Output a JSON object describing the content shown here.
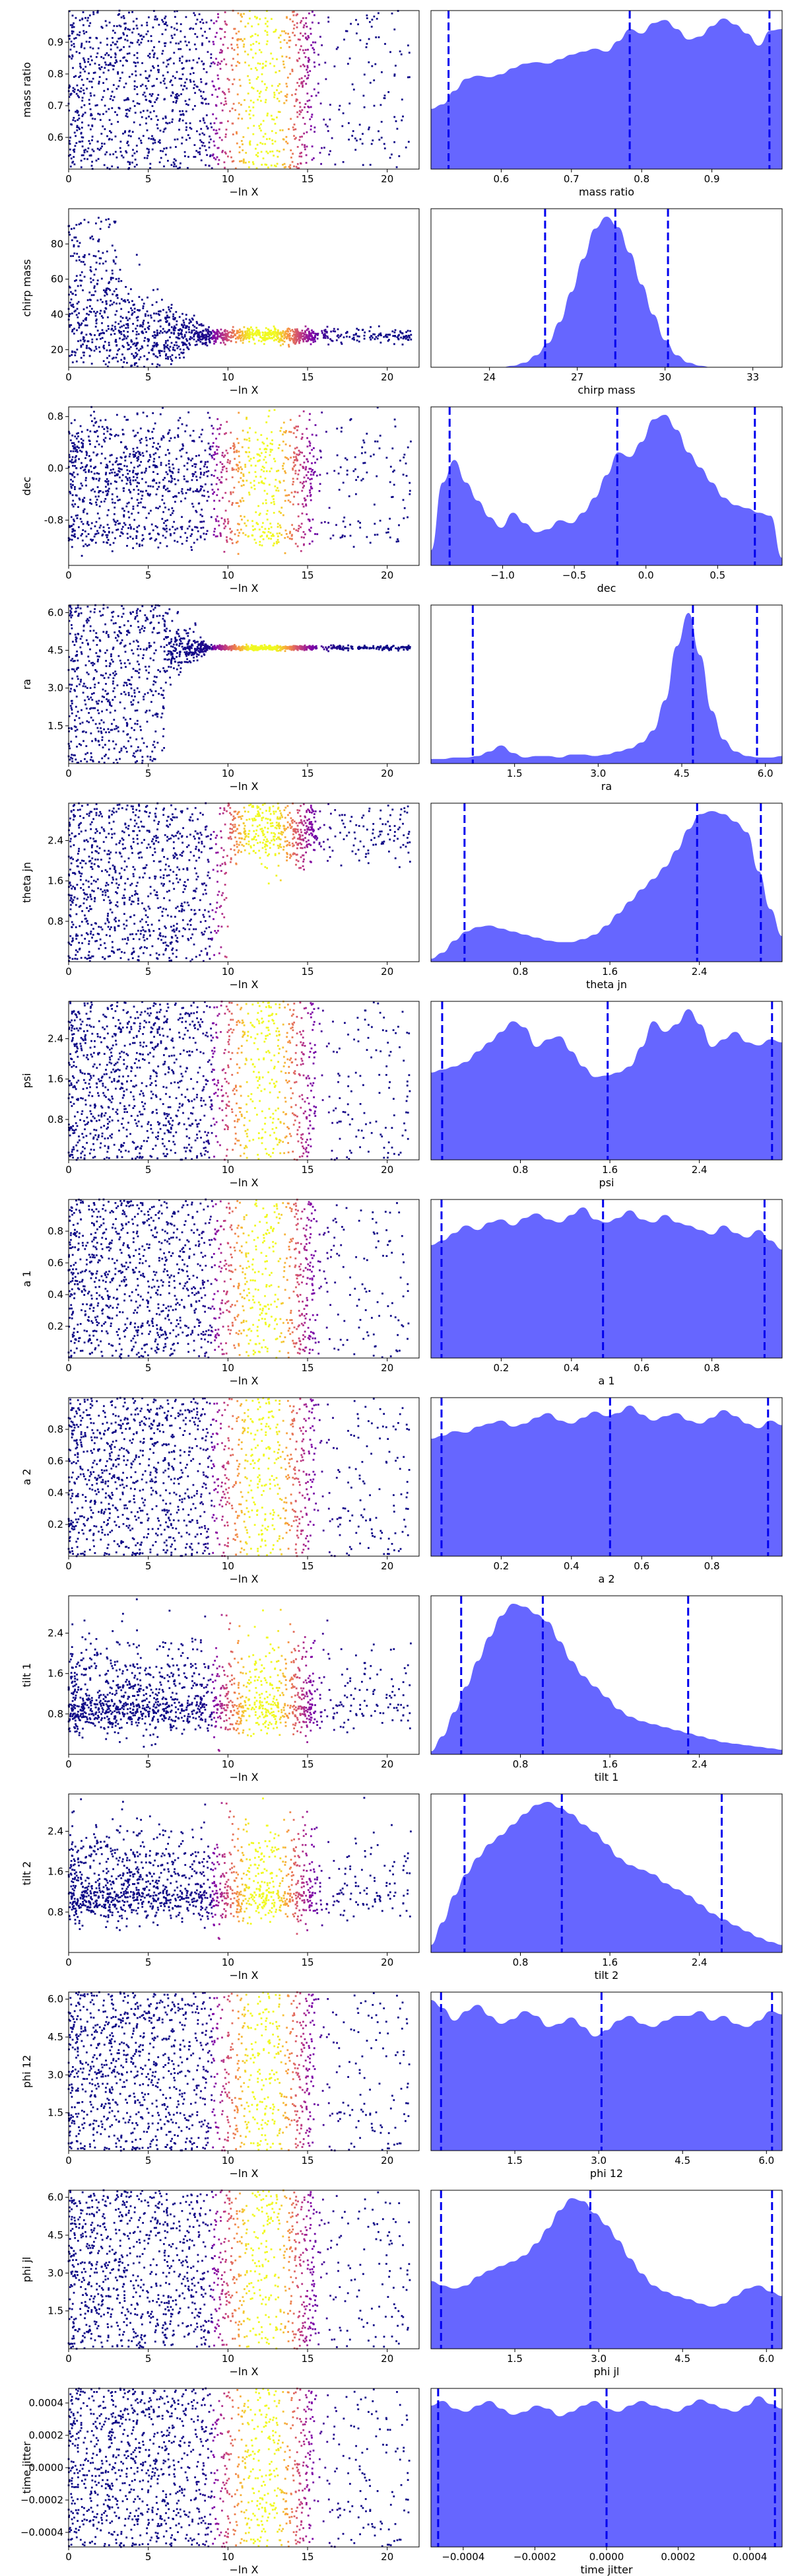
{
  "figure": {
    "panel_rows": 13,
    "colormap": "plasma"
  },
  "scatter_xlabel": "−ln X",
  "scatter_xticks": [
    "0",
    "5",
    "10",
    "15",
    "20"
  ],
  "scatter_xlim": [
    0,
    22
  ],
  "kde_fill_color": "#6666ff",
  "quantile_line_color": "#0000ee",
  "chart_data": [
    {
      "type": "scatter+area",
      "name": "mass ratio",
      "ylabel": "mass ratio",
      "xlabel": "mass ratio",
      "range": [
        0.5,
        1.0
      ],
      "scatter_yticks": [
        "0.6",
        "0.7",
        "0.8",
        "0.9"
      ],
      "kde_xticks": [
        "0.6",
        "0.7",
        "0.8",
        "0.9"
      ],
      "scatter_profile": "uniform",
      "quantiles": [
        0.525,
        0.783,
        0.982
      ],
      "kde": [
        0.4,
        0.43,
        0.52,
        0.6,
        0.62,
        0.61,
        0.63,
        0.67,
        0.7,
        0.71,
        0.7,
        0.73,
        0.76,
        0.78,
        0.8,
        0.78,
        0.85,
        0.93,
        0.9,
        0.97,
        0.99,
        0.93,
        0.86,
        0.88,
        0.95,
        1.0,
        0.96,
        0.9,
        0.82,
        0.92,
        0.93
      ]
    },
    {
      "type": "scatter+area",
      "name": "chirp mass",
      "ylabel": "chirp mass",
      "xlabel": "chirp mass",
      "range": [
        22,
        34
      ],
      "scatter_ylim": [
        10,
        100
      ],
      "scatter_yticks": [
        "20",
        "40",
        "60",
        "80"
      ],
      "kde_xticks": [
        "24",
        "27",
        "30",
        "33"
      ],
      "scatter_profile": "converge",
      "center": 28.0,
      "quantiles": [
        25.9,
        28.3,
        30.1
      ],
      "kde": [
        0.0,
        0.0,
        0.0,
        0.0,
        0.0,
        0.0,
        0.0,
        0.01,
        0.03,
        0.08,
        0.16,
        0.3,
        0.5,
        0.72,
        0.92,
        1.0,
        0.93,
        0.76,
        0.55,
        0.35,
        0.18,
        0.08,
        0.03,
        0.01,
        0.0,
        0.0,
        0.0,
        0.0,
        0.0,
        0.0,
        0.0
      ]
    },
    {
      "type": "scatter+area",
      "name": "dec",
      "ylabel": "dec",
      "xlabel": "dec",
      "range": [
        -1.5,
        0.95
      ],
      "scatter_yticks": [
        "-0.8",
        "0.0",
        "0.8"
      ],
      "kde_xticks": [
        "−1.0",
        "−0.5",
        "0.0",
        "0.5"
      ],
      "scatter_profile": "bimodal",
      "center": 0.0,
      "quantiles": [
        -1.37,
        -0.2,
        0.76
      ],
      "kde": [
        0.1,
        0.55,
        0.7,
        0.55,
        0.43,
        0.32,
        0.25,
        0.35,
        0.28,
        0.22,
        0.24,
        0.3,
        0.28,
        0.35,
        0.45,
        0.6,
        0.75,
        0.72,
        0.82,
        0.97,
        1.0,
        0.9,
        0.75,
        0.65,
        0.55,
        0.45,
        0.4,
        0.38,
        0.35,
        0.33,
        0.05
      ]
    },
    {
      "type": "scatter+area",
      "name": "ra",
      "ylabel": "ra",
      "xlabel": "ra",
      "range": [
        0.0,
        6.3
      ],
      "scatter_yticks": [
        "1.5",
        "3.0",
        "4.5",
        "6.0"
      ],
      "kde_xticks": [
        "1.5",
        "3.0",
        "4.5",
        "6.0"
      ],
      "scatter_profile": "converge",
      "center": 4.6,
      "quantiles": [
        0.75,
        4.7,
        5.85
      ],
      "kde": [
        0.03,
        0.03,
        0.04,
        0.04,
        0.05,
        0.08,
        0.12,
        0.07,
        0.04,
        0.05,
        0.05,
        0.04,
        0.06,
        0.06,
        0.05,
        0.06,
        0.08,
        0.1,
        0.14,
        0.22,
        0.42,
        0.78,
        1.0,
        0.72,
        0.35,
        0.16,
        0.08,
        0.05,
        0.04,
        0.04,
        0.05
      ]
    },
    {
      "type": "scatter+area",
      "name": "theta jn",
      "ylabel": "theta jn",
      "xlabel": "theta jn",
      "range": [
        0.0,
        3.14
      ],
      "scatter_yticks": [
        "0.8",
        "1.6",
        "2.4"
      ],
      "kde_xticks": [
        "0.8",
        "1.6",
        "2.4"
      ],
      "scatter_profile": "shift",
      "center": 2.6,
      "quantiles": [
        0.3,
        2.38,
        2.95
      ],
      "kde": [
        0.02,
        0.06,
        0.14,
        0.2,
        0.23,
        0.24,
        0.22,
        0.2,
        0.18,
        0.16,
        0.14,
        0.13,
        0.13,
        0.15,
        0.18,
        0.24,
        0.32,
        0.4,
        0.48,
        0.55,
        0.63,
        0.74,
        0.88,
        0.98,
        1.0,
        0.98,
        0.93,
        0.86,
        0.6,
        0.35,
        0.17
      ]
    },
    {
      "type": "scatter+area",
      "name": "psi",
      "ylabel": "psi",
      "xlabel": "psi",
      "range": [
        0.0,
        3.14
      ],
      "scatter_yticks": [
        "0.8",
        "1.6",
        "2.4"
      ],
      "kde_xticks": [
        "0.8",
        "1.6",
        "2.4"
      ],
      "scatter_profile": "uniform",
      "quantiles": [
        0.1,
        1.58,
        3.05
      ],
      "kde": [
        0.58,
        0.6,
        0.62,
        0.65,
        0.72,
        0.78,
        0.85,
        0.92,
        0.88,
        0.75,
        0.8,
        0.82,
        0.72,
        0.62,
        0.55,
        0.56,
        0.58,
        0.62,
        0.75,
        0.92,
        0.85,
        0.9,
        1.0,
        0.9,
        0.75,
        0.8,
        0.85,
        0.78,
        0.76,
        0.8,
        0.78
      ]
    },
    {
      "type": "scatter+area",
      "name": "a 1",
      "ylabel": "a 1",
      "xlabel": "a 1",
      "range": [
        0.0,
        1.0
      ],
      "scatter_yticks": [
        "0.2",
        "0.4",
        "0.6",
        "0.8"
      ],
      "kde_xticks": [
        "0.2",
        "0.4",
        "0.6",
        "0.8"
      ],
      "scatter_profile": "uniform",
      "quantiles": [
        0.03,
        0.49,
        0.95
      ],
      "kde": [
        0.75,
        0.78,
        0.83,
        0.88,
        0.85,
        0.9,
        0.92,
        0.88,
        0.93,
        0.96,
        0.92,
        0.9,
        0.95,
        1.0,
        0.92,
        0.9,
        0.93,
        0.98,
        0.92,
        0.9,
        0.95,
        0.9,
        0.88,
        0.85,
        0.82,
        0.88,
        0.83,
        0.8,
        0.85,
        0.78,
        0.72
      ]
    },
    {
      "type": "scatter+area",
      "name": "a 2",
      "ylabel": "a 2",
      "xlabel": "a 2",
      "range": [
        0.0,
        1.0
      ],
      "scatter_yticks": [
        "0.2",
        "0.4",
        "0.6",
        "0.8"
      ],
      "kde_xticks": [
        "0.2",
        "0.4",
        "0.6",
        "0.8"
      ],
      "scatter_profile": "uniform",
      "quantiles": [
        0.03,
        0.51,
        0.96
      ],
      "kde": [
        0.78,
        0.8,
        0.83,
        0.82,
        0.86,
        0.88,
        0.9,
        0.86,
        0.88,
        0.92,
        0.95,
        0.9,
        0.88,
        0.92,
        0.96,
        0.93,
        0.95,
        1.0,
        0.94,
        0.9,
        0.93,
        0.95,
        0.9,
        0.88,
        0.92,
        0.97,
        0.93,
        0.88,
        0.85,
        0.9,
        0.87
      ]
    },
    {
      "type": "scatter+area",
      "name": "tilt 1",
      "ylabel": "tilt 1",
      "xlabel": "tilt 1",
      "range": [
        0.0,
        3.14
      ],
      "scatter_yticks": [
        "0.8",
        "1.6",
        "2.4"
      ],
      "kde_xticks": [
        "0.8",
        "1.6",
        "2.4"
      ],
      "scatter_profile": "skew",
      "center": 1.0,
      "quantiles": [
        0.27,
        1.0,
        2.3
      ],
      "kde": [
        0.02,
        0.12,
        0.28,
        0.45,
        0.62,
        0.78,
        0.92,
        1.0,
        0.98,
        0.93,
        0.88,
        0.75,
        0.62,
        0.52,
        0.45,
        0.38,
        0.3,
        0.25,
        0.22,
        0.2,
        0.18,
        0.16,
        0.14,
        0.12,
        0.1,
        0.08,
        0.07,
        0.06,
        0.05,
        0.04,
        0.03
      ]
    },
    {
      "type": "scatter+area",
      "name": "tilt 2",
      "ylabel": "tilt 2",
      "xlabel": "tilt 2",
      "range": [
        0.0,
        3.14
      ],
      "scatter_yticks": [
        "0.8",
        "1.6",
        "2.4"
      ],
      "kde_xticks": [
        "0.8",
        "1.6",
        "2.4"
      ],
      "scatter_profile": "skew",
      "center": 1.2,
      "quantiles": [
        0.3,
        1.17,
        2.6
      ],
      "kde": [
        0.05,
        0.2,
        0.38,
        0.52,
        0.63,
        0.72,
        0.78,
        0.85,
        0.92,
        0.98,
        1.0,
        0.96,
        0.92,
        0.85,
        0.8,
        0.72,
        0.63,
        0.58,
        0.55,
        0.52,
        0.46,
        0.42,
        0.38,
        0.32,
        0.26,
        0.22,
        0.18,
        0.14,
        0.1,
        0.07,
        0.05
      ]
    },
    {
      "type": "scatter+area",
      "name": "phi 12",
      "ylabel": "phi 12",
      "xlabel": "phi 12",
      "range": [
        0.0,
        6.28
      ],
      "scatter_yticks": [
        "1.5",
        "3.0",
        "4.5",
        "6.0"
      ],
      "kde_xticks": [
        "1.5",
        "3.0",
        "4.5",
        "6.0"
      ],
      "scatter_profile": "uniform",
      "quantiles": [
        0.18,
        3.05,
        6.1
      ],
      "kde": [
        0.95,
        0.9,
        0.82,
        0.88,
        0.92,
        0.85,
        0.8,
        0.83,
        0.88,
        0.85,
        0.78,
        0.8,
        0.84,
        0.78,
        0.72,
        0.76,
        0.82,
        0.85,
        0.8,
        0.78,
        0.82,
        0.85,
        0.85,
        0.88,
        0.82,
        0.85,
        0.8,
        0.78,
        0.82,
        0.88,
        0.86
      ]
    },
    {
      "type": "scatter+area",
      "name": "phi jl",
      "ylabel": "phi jl",
      "xlabel": "phi jl",
      "range": [
        0.0,
        6.28
      ],
      "scatter_yticks": [
        "1.5",
        "3.0",
        "4.5",
        "6.0"
      ],
      "kde_xticks": [
        "1.5",
        "3.0",
        "4.5",
        "6.0"
      ],
      "scatter_profile": "uniform",
      "quantiles": [
        0.18,
        2.85,
        6.1
      ],
      "kde": [
        0.45,
        0.42,
        0.4,
        0.42,
        0.48,
        0.52,
        0.55,
        0.58,
        0.62,
        0.7,
        0.8,
        0.92,
        1.0,
        0.98,
        0.9,
        0.82,
        0.72,
        0.6,
        0.5,
        0.42,
        0.38,
        0.35,
        0.33,
        0.3,
        0.28,
        0.3,
        0.35,
        0.4,
        0.42,
        0.38,
        0.35
      ]
    },
    {
      "type": "scatter+area",
      "name": "time jitter",
      "ylabel": "time jitter",
      "xlabel": "time jitter",
      "range": [
        -0.00049,
        0.00049
      ],
      "scatter_yticks": [
        "−0.0004",
        "−0.0002",
        "0.0000",
        "0.0002",
        "0.0004"
      ],
      "kde_xticks": [
        "−0.0004",
        "−0.0002",
        "0.0000",
        "0.0002",
        "0.0004"
      ],
      "scatter_profile": "uniform",
      "quantiles": [
        -0.00047,
        0.0,
        0.00047
      ],
      "kde": [
        0.92,
        0.95,
        0.9,
        0.88,
        0.92,
        0.95,
        0.9,
        0.86,
        0.88,
        0.92,
        0.9,
        0.85,
        0.88,
        0.92,
        0.95,
        0.9,
        0.88,
        0.92,
        0.95,
        0.92,
        0.9,
        0.88,
        0.92,
        0.96,
        0.93,
        0.9,
        0.88,
        0.92,
        0.98,
        0.93,
        0.9
      ]
    }
  ]
}
